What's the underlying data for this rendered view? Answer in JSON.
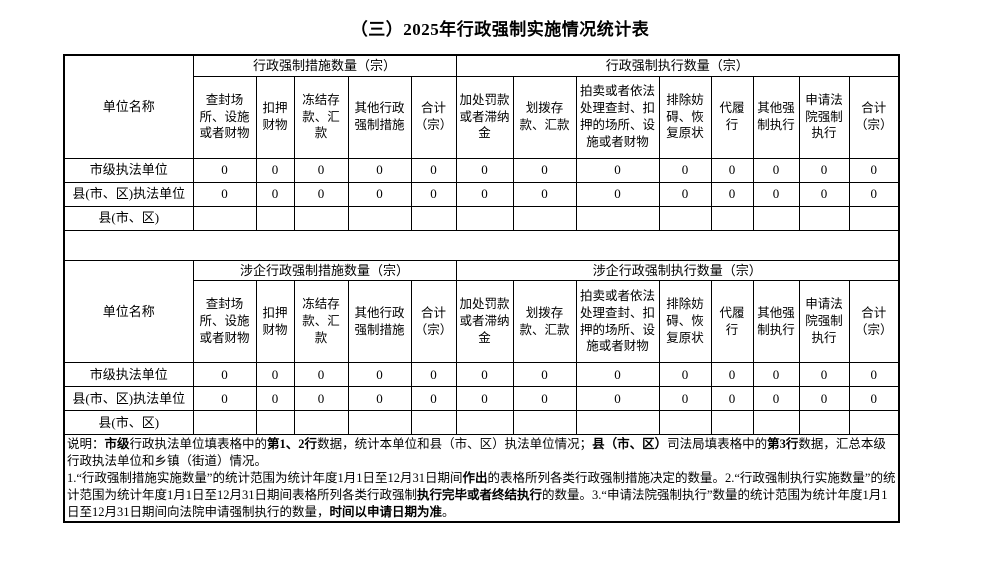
{
  "page_title": "（三）2025年行政强制实施情况统计表",
  "colors": {
    "border": "#000000",
    "text": "#000000",
    "background": "#ffffff"
  },
  "columns": {
    "unit_label": "单位名称",
    "measure_columns": [
      "查封场所、设施或者财物",
      "扣押财物",
      "冻结存款、汇款",
      "其他行政强制措施",
      "合计（宗）"
    ],
    "execution_columns": [
      "加处罚款或者滞纳金",
      "划拨存款、汇款",
      "拍卖或者依法处理查封、扣押的场所、设施或者财物",
      "排除妨碍、恢复原状",
      "代履行",
      "其他强制执行",
      "申请法院强制执行",
      "合计（宗）"
    ]
  },
  "sections": [
    {
      "measure_group_label": "行政强制措施数量（宗）",
      "execution_group_label": "行政强制执行数量（宗）",
      "rows": [
        {
          "label": "市级执法单位",
          "values": [
            "0",
            "0",
            "0",
            "0",
            "0",
            "0",
            "0",
            "0",
            "0",
            "0",
            "0",
            "0",
            "0"
          ]
        },
        {
          "label": "县(市、区)执法单位",
          "values": [
            "0",
            "0",
            "0",
            "0",
            "0",
            "0",
            "0",
            "0",
            "0",
            "0",
            "0",
            "0",
            "0"
          ]
        },
        {
          "label": "县(市、区)",
          "values": [
            "",
            "",
            "",
            "",
            "",
            "",
            "",
            "",
            "",
            "",
            "",
            "",
            ""
          ]
        }
      ]
    },
    {
      "measure_group_label": "涉企行政强制措施数量（宗）",
      "execution_group_label": "涉企行政强制执行数量（宗）",
      "rows": [
        {
          "label": "市级执法单位",
          "values": [
            "0",
            "0",
            "0",
            "0",
            "0",
            "0",
            "0",
            "0",
            "0",
            "0",
            "0",
            "0",
            "0"
          ]
        },
        {
          "label": "县(市、区)执法单位",
          "values": [
            "0",
            "0",
            "0",
            "0",
            "0",
            "0",
            "0",
            "0",
            "0",
            "0",
            "0",
            "0",
            "0"
          ]
        },
        {
          "label": "县(市、区)",
          "values": [
            "",
            "",
            "",
            "",
            "",
            "",
            "",
            "",
            "",
            "",
            "",
            "",
            ""
          ]
        }
      ]
    }
  ],
  "notes": {
    "paragraphs": [
      {
        "segments": [
          {
            "text": "说明：",
            "bold": false
          },
          {
            "text": "市级",
            "bold": true
          },
          {
            "text": "行政执法单位填表格中的",
            "bold": false
          },
          {
            "text": "第1、2行",
            "bold": true
          },
          {
            "text": "数据，统计本单位和县（市、区）执法单位情况；",
            "bold": false
          },
          {
            "text": "县（市、区）",
            "bold": true
          },
          {
            "text": "司法局填表格中的",
            "bold": false
          },
          {
            "text": "第3行",
            "bold": true
          },
          {
            "text": "数据，汇总本级行政执法单位和乡镇（街道）情况。",
            "bold": false
          }
        ]
      },
      {
        "segments": [
          {
            "text": "1.“行政强制措施实施数量”的统计范围为统计年度1月1日至12月31日期间",
            "bold": false
          },
          {
            "text": "作出",
            "bold": true
          },
          {
            "text": "的表格所列各类行政强制措施决定的数量。2.“行政强制执行实施数量”的统计范围为统计年度1月1日至12月31日期间表格所列各类行政强制",
            "bold": false
          },
          {
            "text": "执行完毕或者终结执行",
            "bold": true
          },
          {
            "text": "的数量。3.“申请法院强制执行”数量的统计范围为统计年度1月1日至12月31日期间向法院申请强制执行的数量，",
            "bold": false
          },
          {
            "text": "时间以申请日期为准",
            "bold": true
          },
          {
            "text": "。",
            "bold": false
          }
        ]
      }
    ]
  }
}
